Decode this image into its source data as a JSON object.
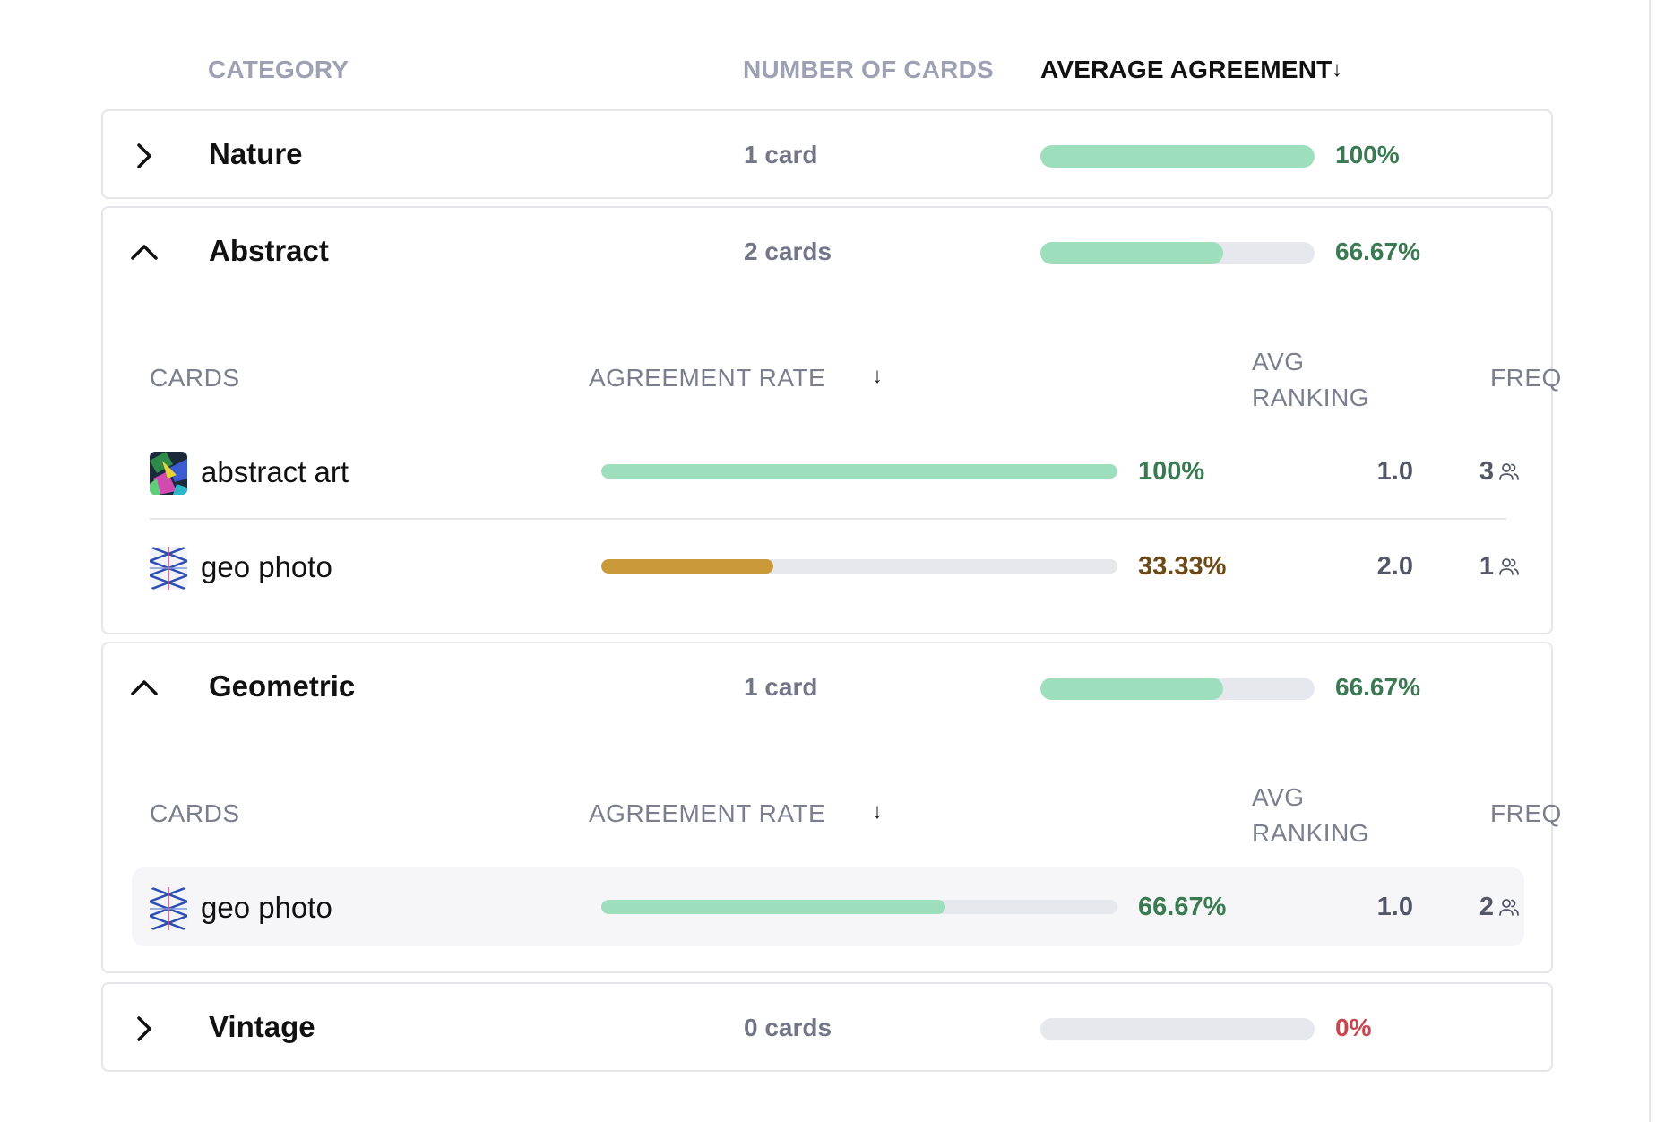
{
  "colors": {
    "bar_green": "#9ddfbc",
    "bar_gold": "#c99a3a",
    "text_green": "#3a7a52",
    "text_brown": "#6b4a17",
    "text_red": "#c9454f",
    "track": "#e7e8ee"
  },
  "header": {
    "category": "CATEGORY",
    "number_of_cards": "NUMBER OF CARDS",
    "average_agreement": "AVERAGE AGREEMENT",
    "sort_arrow": "↓"
  },
  "sub_header": {
    "cards": "CARDS",
    "agreement_rate": "AGREEMENT RATE",
    "sort_arrow": "↓",
    "avg_ranking": "AVG RANKING",
    "freq": "FREQ"
  },
  "groups": [
    {
      "name": "Nature",
      "count": "1 card",
      "pct": "100%",
      "fraction": 1.0,
      "expanded": false,
      "icon": "chevron-right-icon",
      "cards": []
    },
    {
      "name": "Abstract",
      "count": "2 cards",
      "pct": "66.67%",
      "fraction": 0.6667,
      "expanded": true,
      "icon": "chevron-up-icon",
      "cards": [
        {
          "name": "abstract art",
          "pct": "100%",
          "fraction": 1.0,
          "rank": "1.0",
          "freq": "3",
          "thumb": "abstract-art-thumbnail"
        },
        {
          "name": "geo photo",
          "pct": "33.33%",
          "fraction": 0.3333,
          "rank": "2.0",
          "freq": "1",
          "thumb": "geo-photo-thumbnail"
        }
      ]
    },
    {
      "name": "Geometric",
      "count": "1 card",
      "pct": "66.67%",
      "fraction": 0.6667,
      "expanded": true,
      "icon": "chevron-up-icon",
      "cards": [
        {
          "name": "geo photo",
          "pct": "66.67%",
          "fraction": 0.6667,
          "rank": "1.0",
          "freq": "2",
          "thumb": "geo-photo-thumbnail"
        }
      ]
    },
    {
      "name": "Vintage",
      "count": "0 cards",
      "pct": "0%",
      "fraction": 0,
      "expanded": false,
      "icon": "chevron-right-icon",
      "cards": []
    }
  ]
}
